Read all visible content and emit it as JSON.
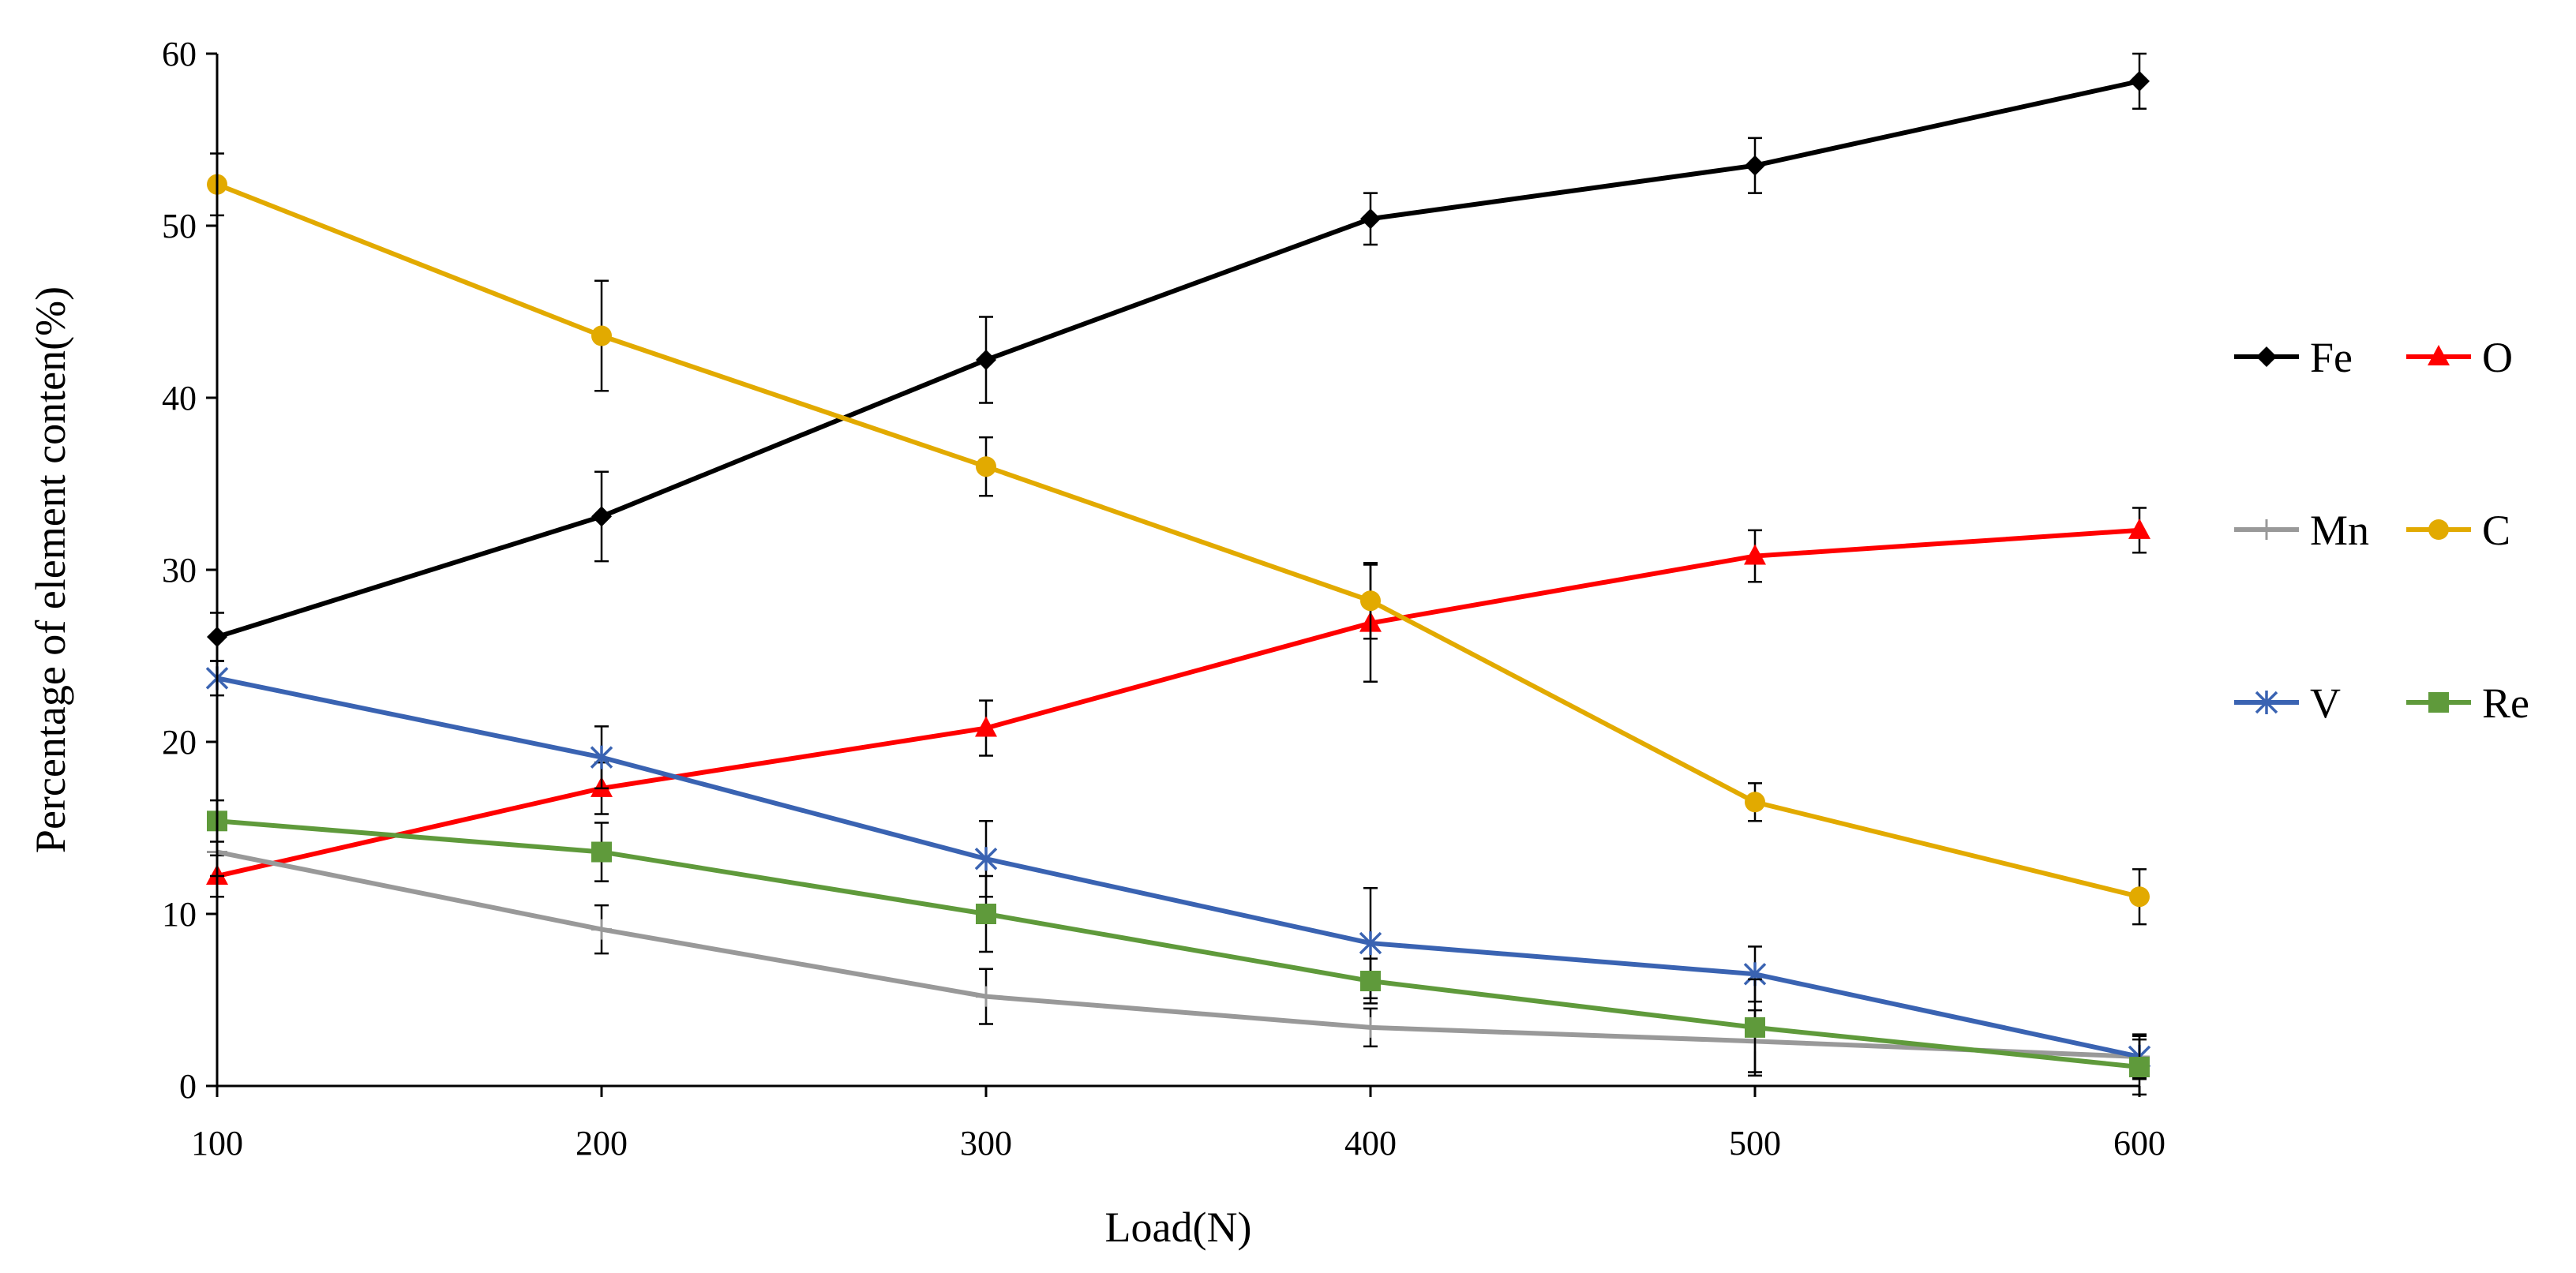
{
  "chart_data": {
    "type": "line",
    "title": "",
    "xlabel": "Load(N)",
    "ylabel": "Percentage of element conten(%)",
    "x": [
      100,
      200,
      300,
      400,
      500,
      600
    ],
    "xlim": [
      100,
      600
    ],
    "ylim": [
      0,
      60
    ],
    "xticks": [
      "100",
      "200",
      "300",
      "400",
      "500",
      "600"
    ],
    "yticks": [
      "0",
      "10",
      "20",
      "30",
      "40",
      "50",
      "60"
    ],
    "legend_position": "right",
    "series": [
      {
        "name": "Fe",
        "color": "#000000",
        "marker": "diamond",
        "values": [
          26.1,
          33.1,
          42.2,
          50.4,
          53.5,
          58.4
        ],
        "errors": [
          1.4,
          2.6,
          2.5,
          1.5,
          1.6,
          1.6
        ]
      },
      {
        "name": "O",
        "color": "#ff0000",
        "marker": "triangle",
        "values": [
          12.2,
          17.3,
          20.8,
          26.9,
          30.8,
          32.3
        ],
        "errors": [
          1.2,
          1.5,
          1.6,
          3.4,
          1.5,
          1.3
        ]
      },
      {
        "name": "Mn",
        "color": "#999999",
        "marker": "plus",
        "values": [
          13.6,
          9.1,
          5.2,
          3.4,
          2.6,
          1.7
        ],
        "errors": [
          1.4,
          1.4,
          1.6,
          1.1,
          1.8,
          1.3
        ]
      },
      {
        "name": "C",
        "color": "#e2aa00",
        "marker": "circle",
        "values": [
          52.4,
          43.6,
          36.0,
          28.2,
          16.5,
          11.0
        ],
        "errors": [
          1.8,
          3.2,
          1.7,
          2.2,
          1.1,
          1.6
        ]
      },
      {
        "name": "V",
        "color": "#3a63b2",
        "marker": "asterisk",
        "values": [
          23.7,
          19.1,
          13.2,
          8.3,
          6.5,
          1.7
        ],
        "errors": [
          1.0,
          1.8,
          2.2,
          3.2,
          1.6,
          1.2
        ]
      },
      {
        "name": "Re",
        "color": "#5f9a3b",
        "marker": "square",
        "values": [
          15.4,
          13.6,
          10.0,
          6.1,
          3.4,
          1.1
        ],
        "errors": [
          1.2,
          1.7,
          2.2,
          1.3,
          2.8,
          1.6
        ]
      }
    ]
  }
}
